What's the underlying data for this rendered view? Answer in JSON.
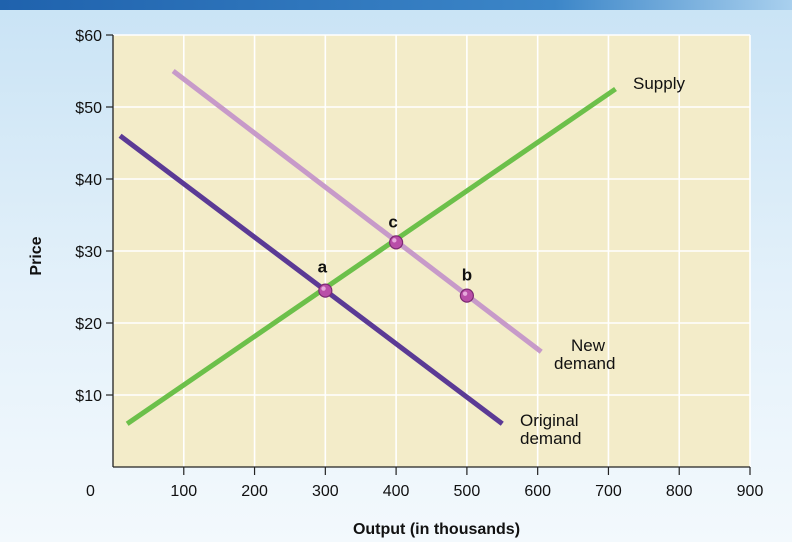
{
  "chart_data": {
    "type": "line",
    "title": "",
    "xlabel": "Output (in thousands)",
    "ylabel": "Price",
    "xlim": [
      0,
      900
    ],
    "ylim": [
      0,
      60
    ],
    "origin_label": "0",
    "x_ticks": [
      100,
      200,
      300,
      400,
      500,
      600,
      700,
      800,
      900
    ],
    "x_tick_labels": [
      "100",
      "200",
      "300",
      "400",
      "500",
      "600",
      "700",
      "800",
      "900"
    ],
    "y_ticks": [
      10,
      20,
      30,
      40,
      50,
      60
    ],
    "y_tick_labels": [
      "$10",
      "$20",
      "$30",
      "$40",
      "$50",
      "$60"
    ],
    "grid": true,
    "background_color": "#f3ecc9",
    "grid_color": "#ffffff",
    "series": [
      {
        "name": "Original demand",
        "label_lines": [
          "Original",
          "demand"
        ],
        "color": "#5b3a95",
        "points": [
          [
            10,
            46
          ],
          [
            550,
            6
          ]
        ]
      },
      {
        "name": "New demand",
        "label_lines": [
          "New",
          "demand"
        ],
        "color": "#c79ac9",
        "points": [
          [
            85,
            55
          ],
          [
            605,
            16
          ]
        ]
      },
      {
        "name": "Supply",
        "label_lines": [
          "Supply"
        ],
        "color": "#6cc04a",
        "points": [
          [
            20,
            6
          ],
          [
            710,
            52.5
          ]
        ]
      }
    ],
    "points": [
      {
        "label": "a",
        "x": 300,
        "y": 24.5
      },
      {
        "label": "c",
        "x": 400,
        "y": 31.2
      },
      {
        "label": "b",
        "x": 500,
        "y": 23.8
      }
    ],
    "point_color": "#b94ea8"
  }
}
